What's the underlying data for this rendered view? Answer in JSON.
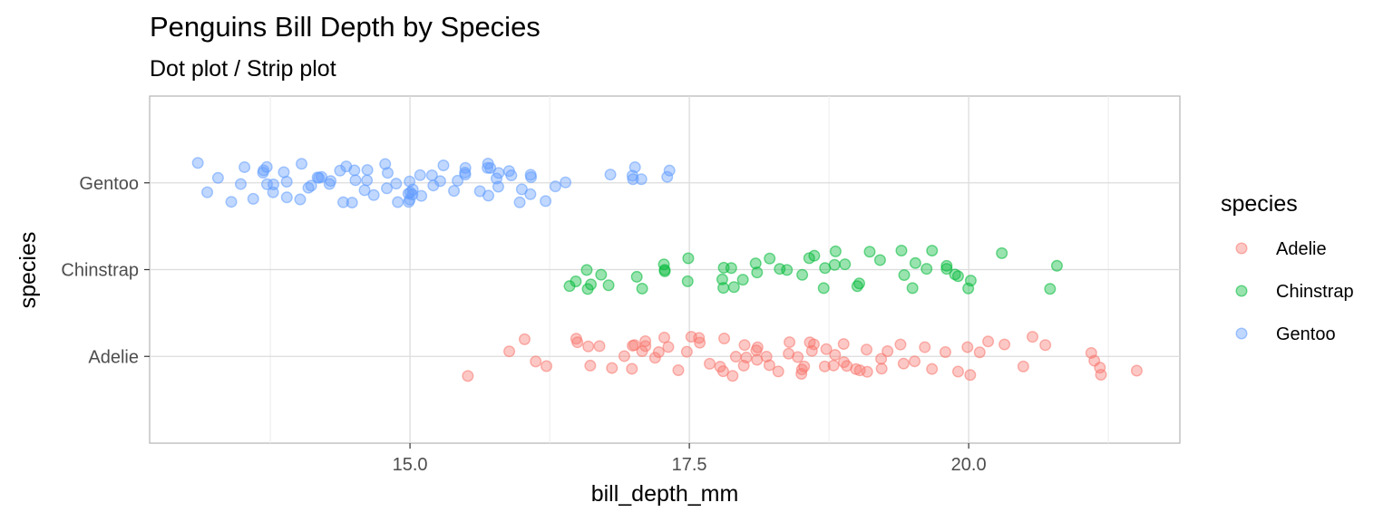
{
  "chart_data": {
    "type": "scatter",
    "title": "Penguins Bill Depth  by Species",
    "subtitle": "Dot plot / Strip plot",
    "xlabel": "bill_depth_mm",
    "ylabel": "species",
    "xlim": [
      12.67,
      21.89
    ],
    "x_ticks": [
      15.0,
      17.5,
      20.0
    ],
    "x_tick_labels": [
      "15.0",
      "17.5",
      "20.0"
    ],
    "categories": [
      "Adelie",
      "Chinstrap",
      "Gentoo"
    ],
    "grid": true,
    "legend": {
      "title": "species",
      "position": "right",
      "entries": [
        "Adelie",
        "Chinstrap",
        "Gentoo"
      ]
    },
    "colors": {
      "Adelie": "#F8766D",
      "Chinstrap": "#00BA38",
      "Gentoo": "#619CFF"
    },
    "point_alpha": 0.4,
    "series": [
      {
        "name": "Gentoo",
        "values": [
          13.1,
          13.2,
          13.3,
          13.4,
          13.5,
          13.5,
          13.6,
          13.7,
          13.7,
          13.7,
          13.7,
          13.8,
          13.8,
          13.9,
          13.9,
          13.9,
          14.0,
          14.0,
          14.1,
          14.1,
          14.2,
          14.2,
          14.2,
          14.3,
          14.3,
          14.4,
          14.4,
          14.4,
          14.5,
          14.5,
          14.5,
          14.6,
          14.6,
          14.6,
          14.7,
          14.8,
          14.8,
          14.8,
          14.9,
          14.9,
          15.0,
          15.0,
          15.0,
          15.0,
          15.0,
          15.0,
          15.0,
          15.1,
          15.1,
          15.2,
          15.2,
          15.3,
          15.3,
          15.4,
          15.4,
          15.5,
          15.5,
          15.5,
          15.6,
          15.7,
          15.7,
          15.7,
          15.7,
          15.8,
          15.8,
          15.8,
          15.9,
          15.9,
          16.0,
          16.0,
          16.1,
          16.1,
          16.1,
          16.2,
          16.3,
          16.4,
          16.8,
          17.0,
          17.0,
          17.0,
          17.1,
          17.3,
          17.3
        ]
      },
      {
        "name": "Chinstrap",
        "values": [
          16.4,
          16.5,
          16.6,
          16.6,
          16.6,
          16.7,
          16.8,
          17.0,
          17.1,
          17.3,
          17.3,
          17.3,
          17.5,
          17.5,
          17.8,
          17.8,
          17.8,
          17.9,
          17.9,
          18.0,
          18.1,
          18.1,
          18.2,
          18.3,
          18.4,
          18.5,
          18.6,
          18.6,
          18.7,
          18.7,
          18.8,
          18.8,
          18.9,
          19.0,
          19.0,
          19.1,
          19.2,
          19.4,
          19.4,
          19.5,
          19.5,
          19.6,
          19.7,
          19.8,
          19.8,
          19.9,
          19.9,
          20.0,
          20.0,
          20.3,
          20.7,
          20.8
        ]
      },
      {
        "name": "Adelie",
        "values": [
          15.5,
          15.9,
          16.0,
          16.1,
          16.2,
          16.5,
          16.5,
          16.6,
          16.6,
          16.7,
          16.8,
          16.9,
          17.0,
          17.0,
          17.0,
          17.1,
          17.1,
          17.1,
          17.2,
          17.2,
          17.3,
          17.3,
          17.4,
          17.5,
          17.5,
          17.6,
          17.6,
          17.7,
          17.8,
          17.8,
          17.8,
          17.9,
          17.9,
          18.0,
          18.0,
          18.0,
          18.1,
          18.1,
          18.1,
          18.2,
          18.2,
          18.3,
          18.4,
          18.4,
          18.5,
          18.5,
          18.5,
          18.5,
          18.6,
          18.6,
          18.6,
          18.7,
          18.7,
          18.8,
          18.8,
          18.9,
          18.9,
          18.9,
          19.0,
          19.0,
          19.1,
          19.1,
          19.2,
          19.2,
          19.3,
          19.4,
          19.4,
          19.5,
          19.6,
          19.7,
          19.8,
          19.9,
          20.0,
          20.0,
          20.1,
          20.2,
          20.3,
          20.5,
          20.6,
          20.7,
          21.1,
          21.1,
          21.2,
          21.2,
          21.5
        ]
      }
    ]
  }
}
